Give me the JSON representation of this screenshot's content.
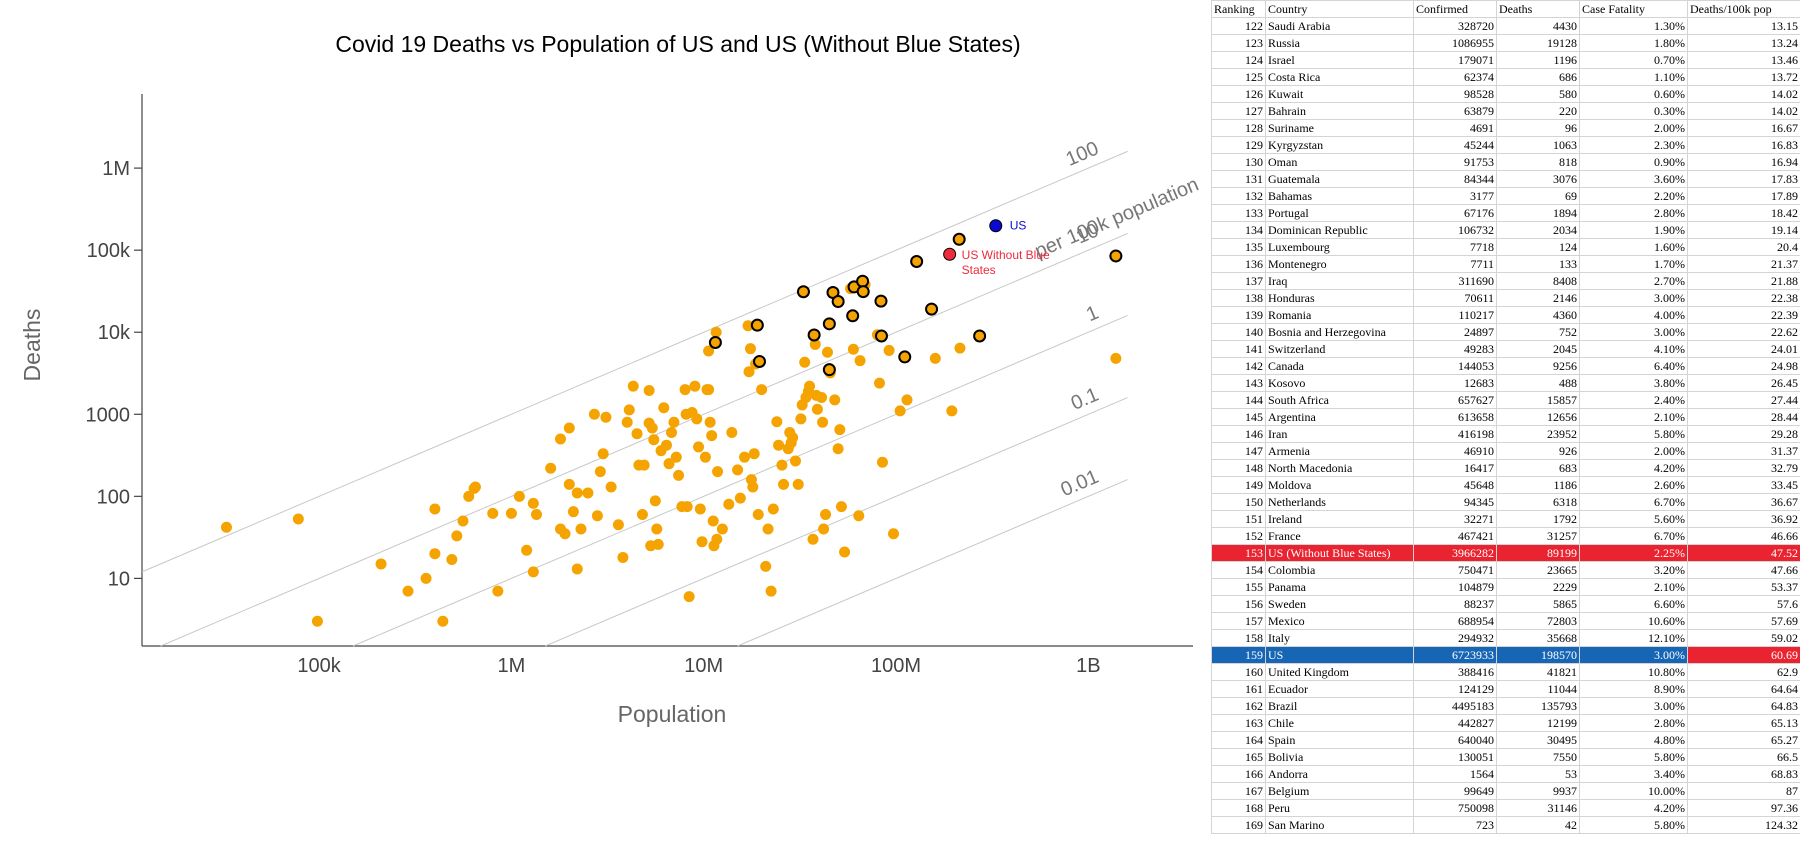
{
  "colors": {
    "country_point": "#f5a300",
    "us_point": "#0b0bd0",
    "us_without_blue_point": "#ee2b3b",
    "guide_line": "#c8c8c8",
    "axis": "#444444",
    "row_highlight_red": "#ea2330",
    "row_highlight_blue": "#1766b5"
  },
  "chart_data": {
    "type": "scatter",
    "title": "Covid 19 Deaths vs Population of US and US (Without Blue States)",
    "xlabel": "Population",
    "ylabel": "Deaths",
    "xscale": "log",
    "yscale": "log",
    "xlim": [
      12000,
      3500000000
    ],
    "ylim": [
      1.5,
      8000000
    ],
    "xticks": [
      {
        "value": 100000,
        "label": "100k"
      },
      {
        "value": 1000000,
        "label": "1M"
      },
      {
        "value": 10000000,
        "label": "10M"
      },
      {
        "value": 100000000,
        "label": "100M"
      },
      {
        "value": 1000000000,
        "label": "1B"
      }
    ],
    "yticks": [
      {
        "value": 10,
        "label": "10"
      },
      {
        "value": 100,
        "label": "100"
      },
      {
        "value": 1000,
        "label": "1000"
      },
      {
        "value": 10000,
        "label": "10k"
      },
      {
        "value": 100000,
        "label": "100k"
      },
      {
        "value": 1000000,
        "label": "1M"
      }
    ],
    "grid": false,
    "guide_lines": [
      {
        "rate_per_100k": 100,
        "label": "100",
        "sublabel": "per 100k population"
      },
      {
        "rate_per_100k": 10,
        "label": "10"
      },
      {
        "rate_per_100k": 1,
        "label": "1"
      },
      {
        "rate_per_100k": 0.1,
        "label": "0.1"
      },
      {
        "rate_per_100k": 0.01,
        "label": "0.01"
      }
    ],
    "highlights": [
      {
        "label": "US",
        "x": 330000000,
        "y": 198570
      },
      {
        "label": "US Without Blue States",
        "x": 190000000,
        "y": 89199
      }
    ],
    "outlined_points": [
      [
        11500000,
        7500
      ],
      [
        19000000,
        12199
      ],
      [
        19500000,
        4400
      ],
      [
        33000000,
        31146
      ],
      [
        37500000,
        9256
      ],
      [
        45000000,
        3500
      ],
      [
        45000000,
        12656
      ],
      [
        47000000,
        30495
      ],
      [
        50000000,
        23665
      ],
      [
        59500000,
        15857
      ],
      [
        60500000,
        35668
      ],
      [
        67000000,
        41821
      ],
      [
        67500000,
        31257
      ],
      [
        83500000,
        23952
      ],
      [
        84000000,
        9000
      ],
      [
        111000000,
        5000
      ],
      [
        128000000,
        72803
      ],
      [
        153000000,
        19128
      ],
      [
        213000000,
        135793
      ],
      [
        272000000,
        9000
      ],
      [
        1390000000,
        85000
      ]
    ],
    "points": [
      [
        33000,
        42
      ],
      [
        78000,
        53
      ],
      [
        98000,
        3
      ],
      [
        210000,
        15
      ],
      [
        290000,
        7
      ],
      [
        360000,
        10
      ],
      [
        400000,
        20
      ],
      [
        400000,
        70
      ],
      [
        440000,
        3
      ],
      [
        490000,
        17
      ],
      [
        520000,
        33
      ],
      [
        560000,
        50
      ],
      [
        600000,
        100
      ],
      [
        640000,
        125
      ],
      [
        650000,
        130
      ],
      [
        800000,
        62
      ],
      [
        850000,
        7
      ],
      [
        1000000,
        62
      ],
      [
        1100000,
        100
      ],
      [
        1200000,
        22
      ],
      [
        1300000,
        12
      ],
      [
        1300000,
        82
      ],
      [
        1350000,
        60
      ],
      [
        1600000,
        220
      ],
      [
        1800000,
        500
      ],
      [
        1800000,
        40
      ],
      [
        1900000,
        35
      ],
      [
        2000000,
        680
      ],
      [
        2000000,
        140
      ],
      [
        2100000,
        65
      ],
      [
        2200000,
        110
      ],
      [
        2200000,
        13
      ],
      [
        2300000,
        40
      ],
      [
        2500000,
        110
      ],
      [
        2700000,
        1000
      ],
      [
        2800000,
        58
      ],
      [
        2900000,
        200
      ],
      [
        3000000,
        330
      ],
      [
        3100000,
        920
      ],
      [
        3300000,
        130
      ],
      [
        3600000,
        45
      ],
      [
        3800000,
        18
      ],
      [
        4000000,
        800
      ],
      [
        4100000,
        1130
      ],
      [
        4300000,
        2200
      ],
      [
        4500000,
        580
      ],
      [
        4600000,
        240
      ],
      [
        4800000,
        60
      ],
      [
        4900000,
        240
      ],
      [
        5200000,
        1950
      ],
      [
        5200000,
        780
      ],
      [
        5300000,
        25
      ],
      [
        5400000,
        680
      ],
      [
        5500000,
        490
      ],
      [
        5600000,
        88
      ],
      [
        5700000,
        40
      ],
      [
        5800000,
        26
      ],
      [
        6000000,
        360
      ],
      [
        6200000,
        1200
      ],
      [
        6400000,
        420
      ],
      [
        6600000,
        250
      ],
      [
        6800000,
        600
      ],
      [
        7000000,
        800
      ],
      [
        7200000,
        300
      ],
      [
        7400000,
        180
      ],
      [
        7700000,
        75
      ],
      [
        8000000,
        2000
      ],
      [
        8100000,
        1000
      ],
      [
        8200000,
        75
      ],
      [
        8400000,
        6
      ],
      [
        8700000,
        1050
      ],
      [
        9000000,
        2200
      ],
      [
        9200000,
        880
      ],
      [
        9400000,
        400
      ],
      [
        9600000,
        70
      ],
      [
        9800000,
        28
      ],
      [
        10200000,
        300
      ],
      [
        10400000,
        2000
      ],
      [
        10600000,
        5900
      ],
      [
        10600000,
        2000
      ],
      [
        10800000,
        800
      ],
      [
        11000000,
        550
      ],
      [
        11200000,
        50
      ],
      [
        11300000,
        25
      ],
      [
        11600000,
        10000
      ],
      [
        11700000,
        30
      ],
      [
        11800000,
        200
      ],
      [
        12500000,
        40
      ],
      [
        13500000,
        80
      ],
      [
        14000000,
        600
      ],
      [
        15000000,
        210
      ],
      [
        15500000,
        95
      ],
      [
        16300000,
        300
      ],
      [
        17000000,
        12000
      ],
      [
        17200000,
        3300
      ],
      [
        17500000,
        6300
      ],
      [
        17700000,
        160
      ],
      [
        18000000,
        130
      ],
      [
        18300000,
        330
      ],
      [
        18600000,
        4100
      ],
      [
        19200000,
        60
      ],
      [
        20000000,
        2000
      ],
      [
        21000000,
        14
      ],
      [
        21600000,
        40
      ],
      [
        22400000,
        7
      ],
      [
        23000000,
        70
      ],
      [
        24000000,
        810
      ],
      [
        24500000,
        420
      ],
      [
        25500000,
        240
      ],
      [
        26000000,
        140
      ],
      [
        27500000,
        380
      ],
      [
        28000000,
        600
      ],
      [
        28500000,
        450
      ],
      [
        29000000,
        520
      ],
      [
        30000000,
        270
      ],
      [
        31000000,
        140
      ],
      [
        32000000,
        880
      ],
      [
        32500000,
        1300
      ],
      [
        33500000,
        4300
      ],
      [
        34000000,
        1600
      ],
      [
        35000000,
        1900
      ],
      [
        35500000,
        2200
      ],
      [
        37000000,
        30
      ],
      [
        38000000,
        7100
      ],
      [
        38500000,
        1700
      ],
      [
        39000000,
        1150
      ],
      [
        41000000,
        1600
      ],
      [
        41500000,
        800
      ],
      [
        42000000,
        40
      ],
      [
        43000000,
        60
      ],
      [
        44000000,
        5700
      ],
      [
        45500000,
        3200
      ],
      [
        48000000,
        1500
      ],
      [
        50000000,
        380
      ],
      [
        51000000,
        650
      ],
      [
        52000000,
        75
      ],
      [
        54000000,
        21
      ],
      [
        58000000,
        34000
      ],
      [
        60000000,
        6200
      ],
      [
        64000000,
        58
      ],
      [
        65000000,
        4500
      ],
      [
        69000000,
        38000
      ],
      [
        80000000,
        9300
      ],
      [
        82000000,
        2400
      ],
      [
        85000000,
        260
      ],
      [
        92000000,
        6000
      ],
      [
        97000000,
        35
      ],
      [
        105000000,
        1100
      ],
      [
        114000000,
        1500
      ],
      [
        160000000,
        4800
      ],
      [
        195000000,
        1100
      ],
      [
        215000000,
        6400
      ],
      [
        1390000000,
        4800
      ]
    ]
  },
  "table": {
    "headers": [
      "Ranking",
      "Country",
      "Confirmed",
      "Deaths",
      "Case Fatality",
      "Deaths/100k pop"
    ],
    "rows": [
      {
        "rank": "122",
        "country": "Saudi Arabia",
        "confirmed": "328720",
        "deaths": "4430",
        "cf": "1.30%",
        "per100k": "13.15"
      },
      {
        "rank": "123",
        "country": "Russia",
        "confirmed": "1086955",
        "deaths": "19128",
        "cf": "1.80%",
        "per100k": "13.24"
      },
      {
        "rank": "124",
        "country": "Israel",
        "confirmed": "179071",
        "deaths": "1196",
        "cf": "0.70%",
        "per100k": "13.46"
      },
      {
        "rank": "125",
        "country": "Costa Rica",
        "confirmed": "62374",
        "deaths": "686",
        "cf": "1.10%",
        "per100k": "13.72"
      },
      {
        "rank": "126",
        "country": "Kuwait",
        "confirmed": "98528",
        "deaths": "580",
        "cf": "0.60%",
        "per100k": "14.02"
      },
      {
        "rank": "127",
        "country": "Bahrain",
        "confirmed": "63879",
        "deaths": "220",
        "cf": "0.30%",
        "per100k": "14.02"
      },
      {
        "rank": "128",
        "country": "Suriname",
        "confirmed": "4691",
        "deaths": "96",
        "cf": "2.00%",
        "per100k": "16.67"
      },
      {
        "rank": "129",
        "country": "Kyrgyzstan",
        "confirmed": "45244",
        "deaths": "1063",
        "cf": "2.30%",
        "per100k": "16.83"
      },
      {
        "rank": "130",
        "country": "Oman",
        "confirmed": "91753",
        "deaths": "818",
        "cf": "0.90%",
        "per100k": "16.94"
      },
      {
        "rank": "131",
        "country": "Guatemala",
        "confirmed": "84344",
        "deaths": "3076",
        "cf": "3.60%",
        "per100k": "17.83"
      },
      {
        "rank": "132",
        "country": "Bahamas",
        "confirmed": "3177",
        "deaths": "69",
        "cf": "2.20%",
        "per100k": "17.89"
      },
      {
        "rank": "133",
        "country": "Portugal",
        "confirmed": "67176",
        "deaths": "1894",
        "cf": "2.80%",
        "per100k": "18.42"
      },
      {
        "rank": "134",
        "country": "Dominican Republic",
        "confirmed": "106732",
        "deaths": "2034",
        "cf": "1.90%",
        "per100k": "19.14"
      },
      {
        "rank": "135",
        "country": "Luxembourg",
        "confirmed": "7718",
        "deaths": "124",
        "cf": "1.60%",
        "per100k": "20.4"
      },
      {
        "rank": "136",
        "country": "Montenegro",
        "confirmed": "7711",
        "deaths": "133",
        "cf": "1.70%",
        "per100k": "21.37"
      },
      {
        "rank": "137",
        "country": "Iraq",
        "confirmed": "311690",
        "deaths": "8408",
        "cf": "2.70%",
        "per100k": "21.88"
      },
      {
        "rank": "138",
        "country": "Honduras",
        "confirmed": "70611",
        "deaths": "2146",
        "cf": "3.00%",
        "per100k": "22.38"
      },
      {
        "rank": "139",
        "country": "Romania",
        "confirmed": "110217",
        "deaths": "4360",
        "cf": "4.00%",
        "per100k": "22.39"
      },
      {
        "rank": "140",
        "country": "Bosnia and Herzegovina",
        "confirmed": "24897",
        "deaths": "752",
        "cf": "3.00%",
        "per100k": "22.62"
      },
      {
        "rank": "141",
        "country": "Switzerland",
        "confirmed": "49283",
        "deaths": "2045",
        "cf": "4.10%",
        "per100k": "24.01"
      },
      {
        "rank": "142",
        "country": "Canada",
        "confirmed": "144053",
        "deaths": "9256",
        "cf": "6.40%",
        "per100k": "24.98"
      },
      {
        "rank": "143",
        "country": "Kosovo",
        "confirmed": "12683",
        "deaths": "488",
        "cf": "3.80%",
        "per100k": "26.45"
      },
      {
        "rank": "144",
        "country": "South Africa",
        "confirmed": "657627",
        "deaths": "15857",
        "cf": "2.40%",
        "per100k": "27.44"
      },
      {
        "rank": "145",
        "country": "Argentina",
        "confirmed": "613658",
        "deaths": "12656",
        "cf": "2.10%",
        "per100k": "28.44"
      },
      {
        "rank": "146",
        "country": "Iran",
        "confirmed": "416198",
        "deaths": "23952",
        "cf": "5.80%",
        "per100k": "29.28"
      },
      {
        "rank": "147",
        "country": "Armenia",
        "confirmed": "46910",
        "deaths": "926",
        "cf": "2.00%",
        "per100k": "31.37"
      },
      {
        "rank": "148",
        "country": "North Macedonia",
        "confirmed": "16417",
        "deaths": "683",
        "cf": "4.20%",
        "per100k": "32.79"
      },
      {
        "rank": "149",
        "country": "Moldova",
        "confirmed": "45648",
        "deaths": "1186",
        "cf": "2.60%",
        "per100k": "33.45"
      },
      {
        "rank": "150",
        "country": "Netherlands",
        "confirmed": "94345",
        "deaths": "6318",
        "cf": "6.70%",
        "per100k": "36.67"
      },
      {
        "rank": "151",
        "country": "Ireland",
        "confirmed": "32271",
        "deaths": "1792",
        "cf": "5.60%",
        "per100k": "36.92"
      },
      {
        "rank": "152",
        "country": "France",
        "confirmed": "467421",
        "deaths": "31257",
        "cf": "6.70%",
        "per100k": "46.66"
      },
      {
        "rank": "153",
        "country": "US (Without Blue States)",
        "confirmed": "3966282",
        "deaths": "89199",
        "cf": "2.25%",
        "per100k": "47.52",
        "highlight": "red"
      },
      {
        "rank": "154",
        "country": "Colombia",
        "confirmed": "750471",
        "deaths": "23665",
        "cf": "3.20%",
        "per100k": "47.66"
      },
      {
        "rank": "155",
        "country": "Panama",
        "confirmed": "104879",
        "deaths": "2229",
        "cf": "2.10%",
        "per100k": "53.37"
      },
      {
        "rank": "156",
        "country": "Sweden",
        "confirmed": "88237",
        "deaths": "5865",
        "cf": "6.60%",
        "per100k": "57.6"
      },
      {
        "rank": "157",
        "country": "Mexico",
        "confirmed": "688954",
        "deaths": "72803",
        "cf": "10.60%",
        "per100k": "57.69"
      },
      {
        "rank": "158",
        "country": "Italy",
        "confirmed": "294932",
        "deaths": "35668",
        "cf": "12.10%",
        "per100k": "59.02"
      },
      {
        "rank": "159",
        "country": "US",
        "confirmed": "6723933",
        "deaths": "198570",
        "cf": "3.00%",
        "per100k": "60.69",
        "highlight": "us"
      },
      {
        "rank": "160",
        "country": "United Kingdom",
        "confirmed": "388416",
        "deaths": "41821",
        "cf": "10.80%",
        "per100k": "62.9"
      },
      {
        "rank": "161",
        "country": "Ecuador",
        "confirmed": "124129",
        "deaths": "11044",
        "cf": "8.90%",
        "per100k": "64.64"
      },
      {
        "rank": "162",
        "country": "Brazil",
        "confirmed": "4495183",
        "deaths": "135793",
        "cf": "3.00%",
        "per100k": "64.83"
      },
      {
        "rank": "163",
        "country": "Chile",
        "confirmed": "442827",
        "deaths": "12199",
        "cf": "2.80%",
        "per100k": "65.13"
      },
      {
        "rank": "164",
        "country": "Spain",
        "confirmed": "640040",
        "deaths": "30495",
        "cf": "4.80%",
        "per100k": "65.27"
      },
      {
        "rank": "165",
        "country": "Bolivia",
        "confirmed": "130051",
        "deaths": "7550",
        "cf": "5.80%",
        "per100k": "66.5"
      },
      {
        "rank": "166",
        "country": "Andorra",
        "confirmed": "1564",
        "deaths": "53",
        "cf": "3.40%",
        "per100k": "68.83"
      },
      {
        "rank": "167",
        "country": "Belgium",
        "confirmed": "99649",
        "deaths": "9937",
        "cf": "10.00%",
        "per100k": "87"
      },
      {
        "rank": "168",
        "country": "Peru",
        "confirmed": "750098",
        "deaths": "31146",
        "cf": "4.20%",
        "per100k": "97.36"
      },
      {
        "rank": "169",
        "country": "San Marino",
        "confirmed": "723",
        "deaths": "42",
        "cf": "5.80%",
        "per100k": "124.32"
      }
    ]
  }
}
